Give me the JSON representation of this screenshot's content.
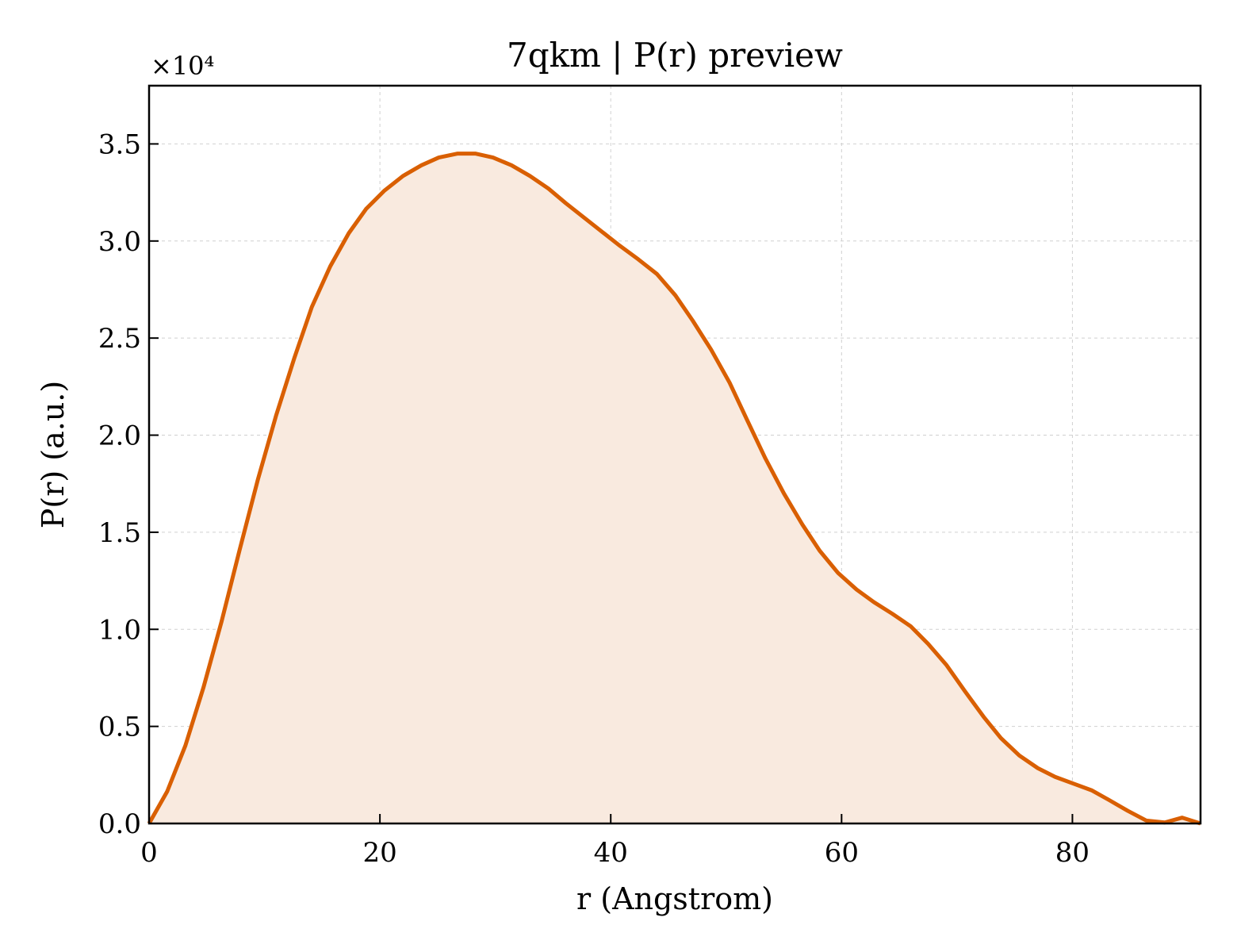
{
  "chart_data": {
    "type": "area",
    "title": "7qkm | P(r) preview",
    "xlabel": "r (Angstrom)",
    "ylabel": "P(r) (a.u.)",
    "y_offset_label": "×10⁴",
    "xlim": [
      0,
      91.1
    ],
    "ylim": [
      0,
      3.8
    ],
    "x_ticks": [
      0,
      20,
      40,
      60,
      80
    ],
    "x_tick_labels": [
      "0",
      "20",
      "40",
      "60",
      "80"
    ],
    "y_ticks": [
      0,
      0.5,
      1.0,
      1.5,
      2.0,
      2.5,
      3.0,
      3.5
    ],
    "y_tick_labels": [
      "0.0",
      "0.5",
      "1.0",
      "1.5",
      "2.0",
      "2.5",
      "3.0",
      "3.5"
    ],
    "grid": true,
    "line_color": "#d95f02",
    "fill_color": "#f9eadf",
    "series": [
      {
        "x": [
          0,
          1.57,
          3.14,
          4.71,
          6.28,
          7.85,
          9.42,
          11.0,
          12.6,
          14.1,
          15.7,
          17.3,
          18.8,
          20.4,
          22.0,
          23.6,
          25.1,
          26.7,
          28.3,
          29.8,
          31.4,
          33.0,
          34.6,
          36.1,
          37.7,
          39.3,
          40.8,
          42.4,
          44.0,
          45.6,
          47.1,
          48.7,
          50.3,
          51.8,
          53.4,
          55.0,
          56.6,
          58.1,
          59.7,
          61.3,
          62.8,
          64.4,
          66.0,
          67.5,
          69.1,
          70.7,
          72.3,
          73.8,
          75.4,
          77.0,
          78.5,
          80.1,
          81.7,
          83.2,
          84.8,
          86.4,
          88.0,
          89.5,
          91.1
        ],
        "values": [
          0.0,
          0.165,
          0.4,
          0.7,
          1.04,
          1.41,
          1.77,
          2.1,
          2.4,
          2.66,
          2.87,
          3.04,
          3.165,
          3.26,
          3.335,
          3.39,
          3.43,
          3.45,
          3.45,
          3.43,
          3.39,
          3.335,
          3.27,
          3.195,
          3.12,
          3.045,
          2.975,
          2.905,
          2.83,
          2.72,
          2.59,
          2.44,
          2.27,
          2.08,
          1.88,
          1.7,
          1.54,
          1.405,
          1.29,
          1.205,
          1.14,
          1.08,
          1.015,
          0.925,
          0.815,
          0.68,
          0.55,
          0.44,
          0.35,
          0.285,
          0.24,
          0.205,
          0.17,
          0.12,
          0.065,
          0.015,
          0.005,
          0.03,
          0.0
        ]
      }
    ]
  }
}
